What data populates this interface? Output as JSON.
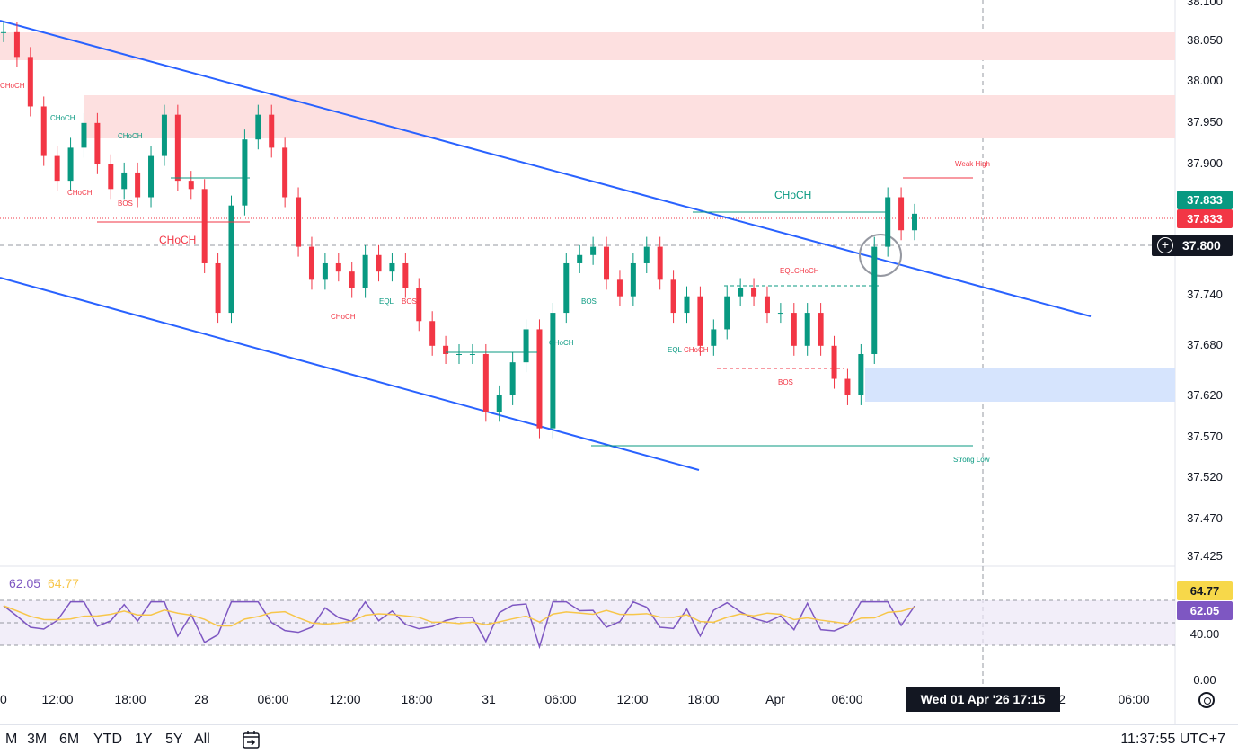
{
  "price_axis": {
    "top_label": "38.100",
    "labels": [
      "38.050",
      "38.000",
      "37.950",
      "37.900",
      "37.740",
      "37.680",
      "37.620",
      "37.570",
      "37.520",
      "37.470",
      "37.425"
    ],
    "tags": [
      {
        "value": "37.833",
        "color": "#089981"
      },
      {
        "value": "37.833",
        "color": "#f23645"
      }
    ],
    "crosshair_price": "37.800"
  },
  "rsi_axis": {
    "labels": [
      "40.00",
      "0.00"
    ],
    "tags": [
      {
        "value": "64.77",
        "color": "#f7d84a",
        "text_color": "#131722"
      },
      {
        "value": "62.05",
        "color": "#7e57c2",
        "text_color": "#ffffff"
      }
    ]
  },
  "rsi_legend": {
    "rsi": "62.05",
    "ma": "64.77"
  },
  "time_axis": {
    "labels": [
      "0",
      "12:00",
      "18:00",
      "28",
      "06:00",
      "12:00",
      "18:00",
      "31",
      "06:00",
      "12:00",
      "18:00",
      "Apr",
      "06:00",
      "2",
      "06:00"
    ],
    "crosshair_time": "Wed 01 Apr '26   17:15"
  },
  "annotations": {
    "choch": "CHoCH",
    "bos": "BOS",
    "eql": "EQL",
    "eql_choch": "EQLCHoCH",
    "weak_high": "Weak High",
    "strong_low": "Strong Low"
  },
  "bottom_bar": {
    "ranges": [
      "M",
      "3M",
      "6M",
      "YTD",
      "1Y",
      "5Y",
      "All"
    ],
    "clock": "11:37:55 UTC+7"
  },
  "colors": {
    "bull": "#089981",
    "bear": "#f23645",
    "trendline": "#2962ff",
    "supply_zone": "#fde0e0",
    "demand_zone": "#d6e4fd",
    "rsi": "#7e57c2",
    "rsi_ma": "#f7c64a"
  },
  "chart_data": {
    "type": "line",
    "title": "",
    "ylim": [
      37.4,
      38.11
    ],
    "series": [
      {
        "values": [
          38.06,
          38.03,
          37.97,
          37.91,
          37.88,
          37.92,
          37.95,
          37.9,
          37.87,
          37.89,
          37.86,
          37.91,
          37.96,
          37.88,
          37.87,
          37.78,
          37.72,
          37.85,
          37.93,
          37.96,
          37.92,
          37.86,
          37.8,
          37.76,
          37.78,
          37.77,
          37.75,
          37.79,
          37.77,
          37.78,
          37.75,
          37.71,
          37.68,
          37.67,
          37.67,
          37.67,
          37.6,
          37.62,
          37.66,
          37.7,
          37.58,
          37.72,
          37.78,
          37.79,
          37.8,
          37.76,
          37.74,
          37.78,
          37.8,
          37.76,
          37.72,
          37.74,
          37.68,
          37.7,
          37.74,
          37.75,
          37.74,
          37.72,
          37.72,
          37.68,
          37.72,
          37.68,
          37.64,
          37.62,
          37.67,
          37.8,
          37.86,
          37.82,
          37.84
        ]
      }
    ]
  }
}
